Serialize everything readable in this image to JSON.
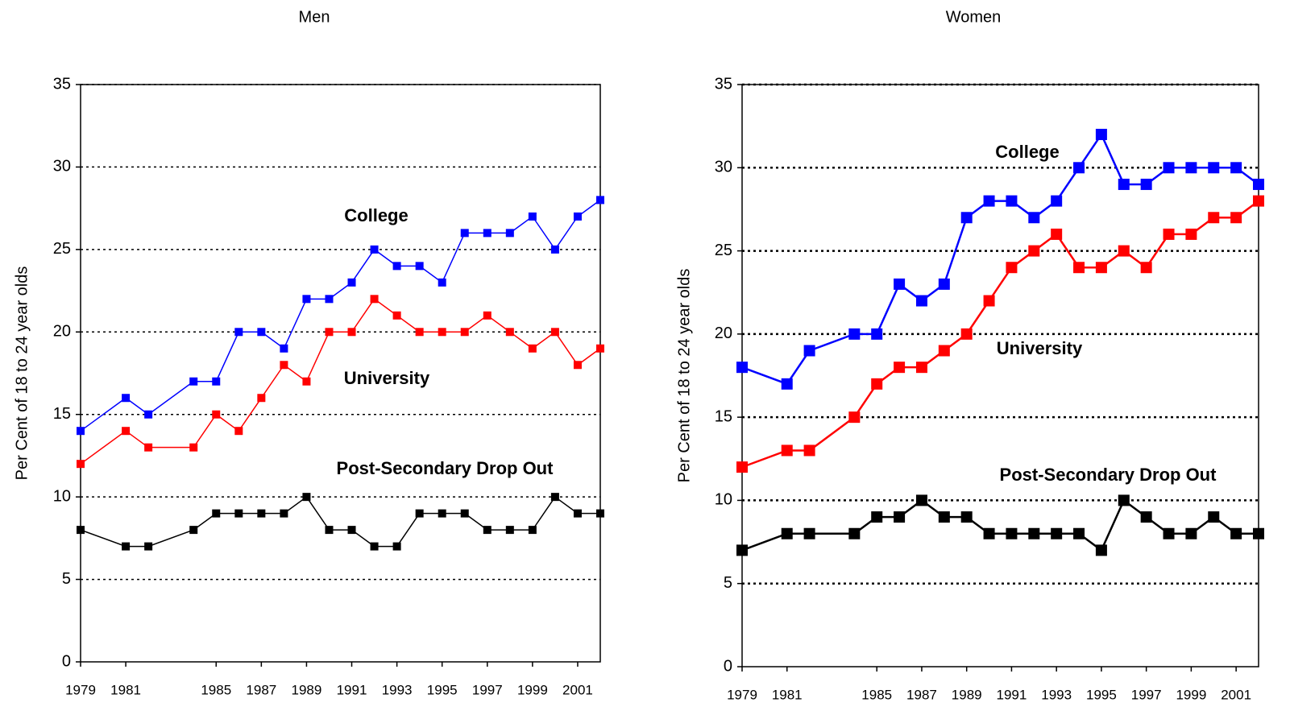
{
  "chart_data": [
    {
      "type": "line",
      "title": "Men",
      "y_label": "Per Cent of 18 to 24 year olds",
      "x": [
        1979,
        1981,
        1982,
        1984,
        1985,
        1986,
        1987,
        1988,
        1989,
        1990,
        1991,
        1992,
        1993,
        1994,
        1995,
        1996,
        1997,
        1998,
        1999,
        2000,
        2001,
        2002
      ],
      "xlim": [
        1979,
        2002
      ],
      "xticks": [
        1979,
        1981,
        1985,
        1987,
        1989,
        1991,
        1993,
        1995,
        1997,
        1999,
        2001
      ],
      "ylim": [
        0,
        35
      ],
      "yticks": [
        0,
        5,
        10,
        15,
        20,
        25,
        30,
        35
      ],
      "grid": true,
      "series": [
        {
          "name": "College",
          "color": "#0000ff",
          "values": [
            14,
            16,
            15,
            17,
            17,
            20,
            20,
            19,
            22,
            22,
            23,
            25,
            24,
            24,
            23,
            26,
            26,
            26,
            27,
            25,
            27,
            28
          ]
        },
        {
          "name": "University",
          "color": "#ff0000",
          "values": [
            12,
            14,
            13,
            13,
            15,
            14,
            16,
            18,
            17,
            20,
            20,
            22,
            21,
            20,
            20,
            20,
            21,
            20,
            19,
            20,
            18,
            19
          ]
        },
        {
          "name": "Post-Secondary Drop Out",
          "color": "#000000",
          "values": [
            8,
            7,
            7,
            8,
            9,
            9,
            9,
            9,
            10,
            8,
            8,
            7,
            7,
            9,
            9,
            9,
            8,
            8,
            8,
            10,
            9,
            9
          ]
        }
      ]
    },
    {
      "type": "line",
      "title": "Women",
      "y_label": "Per Cent of 18 to 24 year olds",
      "x": [
        1979,
        1981,
        1982,
        1984,
        1985,
        1986,
        1987,
        1988,
        1989,
        1990,
        1991,
        1992,
        1993,
        1994,
        1995,
        1996,
        1997,
        1998,
        1999,
        2000,
        2001,
        2002
      ],
      "xlim": [
        1979,
        2002
      ],
      "xticks": [
        1979,
        1981,
        1985,
        1987,
        1989,
        1991,
        1993,
        1995,
        1997,
        1999,
        2001
      ],
      "ylim": [
        0,
        35
      ],
      "yticks": [
        0,
        5,
        10,
        15,
        20,
        25,
        30,
        35
      ],
      "grid": true,
      "series": [
        {
          "name": "College",
          "color": "#0000ff",
          "values": [
            18,
            17,
            19,
            20,
            20,
            23,
            22,
            23,
            27,
            28,
            28,
            27,
            28,
            30,
            32,
            29,
            29,
            30,
            30,
            30,
            30,
            29
          ]
        },
        {
          "name": "University",
          "color": "#ff0000",
          "values": [
            12,
            13,
            13,
            15,
            17,
            18,
            18,
            19,
            20,
            22,
            24,
            25,
            26,
            24,
            24,
            25,
            24,
            26,
            26,
            27,
            27,
            28
          ]
        },
        {
          "name": "Post-Secondary Drop Out",
          "color": "#000000",
          "values": [
            7,
            8,
            8,
            8,
            9,
            9,
            10,
            9,
            9,
            8,
            8,
            8,
            8,
            8,
            7,
            10,
            9,
            8,
            8,
            9,
            8,
            8
          ]
        }
      ]
    }
  ]
}
